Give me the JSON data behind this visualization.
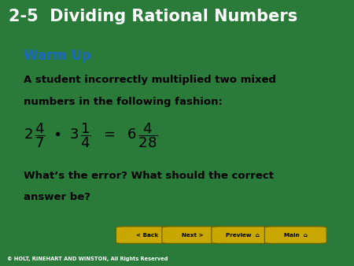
{
  "title": "2-5  Dividing Rational Numbers",
  "title_bg": "#0a0a0a",
  "title_color": "#ffffff",
  "title_fontsize": 15,
  "warm_up_label": "Warm Up",
  "warm_up_color": "#1a6bbf",
  "body_text1": "A student incorrectly multiplied two mixed",
  "body_text2": "numbers in the following fashion:",
  "question_text1": "What’s the error? What should the correct",
  "question_text2": "answer be?",
  "content_bg": "#ffffff",
  "outer_bg": "#2a7a3a",
  "footer_text": "© HOLT, RINEHART AND WINSTON, All Rights Reserved",
  "footer_bg": "#0a0a0a",
  "button_color": "#c8a800",
  "buttons": [
    "< Back",
    "Next >",
    "Preview  n",
    "Main  n"
  ],
  "equation_color": "#000000",
  "content_border": "#3a9a4a"
}
